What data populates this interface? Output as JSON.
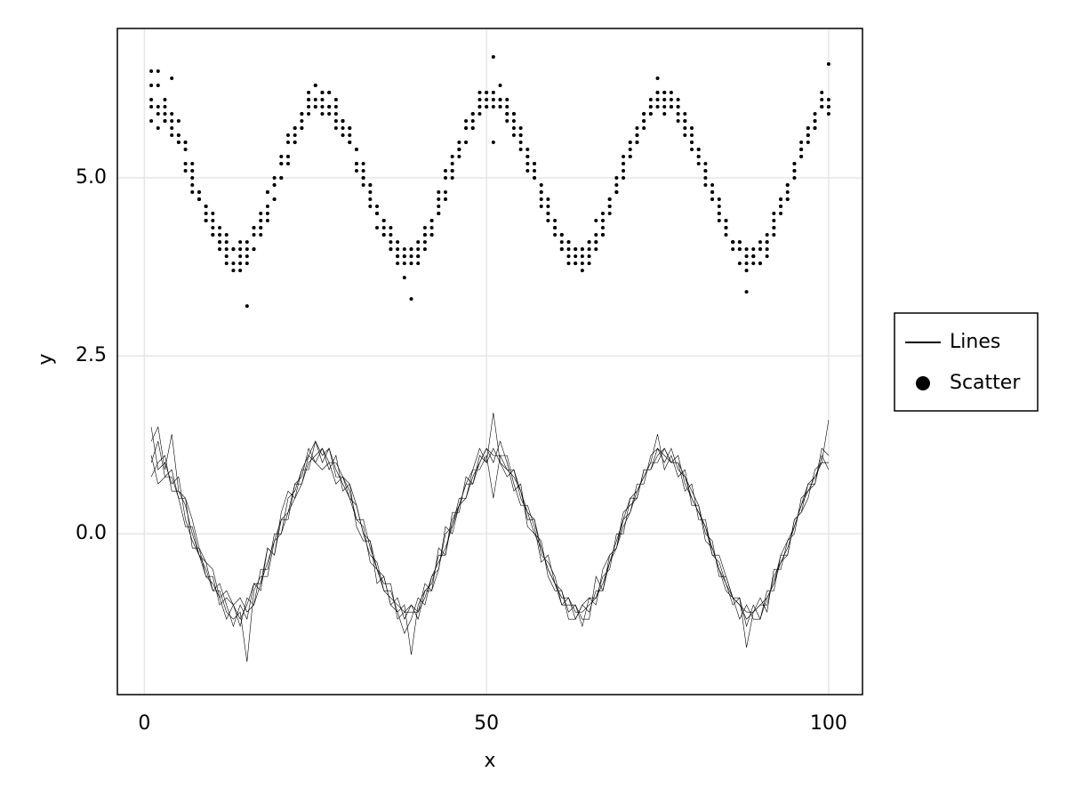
{
  "chart_data": {
    "type": "line",
    "x": [
      1,
      2,
      3,
      4,
      5,
      6,
      7,
      8,
      9,
      10,
      11,
      12,
      13,
      14,
      15,
      16,
      17,
      18,
      19,
      20,
      21,
      22,
      23,
      24,
      25,
      26,
      27,
      28,
      29,
      30,
      31,
      32,
      33,
      34,
      35,
      36,
      37,
      38,
      39,
      40,
      41,
      42,
      43,
      44,
      45,
      46,
      47,
      48,
      49,
      50,
      51,
      52,
      53,
      54,
      55,
      56,
      57,
      58,
      59,
      60,
      61,
      62,
      63,
      64,
      65,
      66,
      67,
      68,
      69,
      70,
      71,
      72,
      73,
      74,
      75,
      76,
      77,
      78,
      79,
      80,
      81,
      82,
      83,
      84,
      85,
      86,
      87,
      88,
      89,
      90,
      91,
      92,
      93,
      94,
      95,
      96,
      97,
      98,
      99,
      100
    ],
    "xlabel": "x",
    "ylabel": "y",
    "xlim": [
      -3.95,
      104.95
    ],
    "xticks": [
      0,
      50,
      100
    ],
    "ylim": [
      -2.26,
      7.1
    ],
    "yticks": [
      {
        "value": 0,
        "label": "0.0"
      },
      {
        "value": 2.5,
        "label": "2.5"
      },
      {
        "value": 5,
        "label": "5.0"
      }
    ],
    "grid": true,
    "legend": "right",
    "series": [
      {
        "name": "Lines",
        "type": "line",
        "color": "#000000",
        "values": [
          [
            1.5,
            0.9,
            1.0,
            0.7,
            0.8,
            0.2,
            -0.1,
            -0.3,
            -0.4,
            -0.8,
            -0.7,
            -1.0,
            -1.3,
            -1.0,
            -1.2,
            -0.7,
            -0.8,
            -0.2,
            -0.3,
            0.2,
            0.3,
            0.7,
            0.7,
            1.1,
            1.0,
            1.2,
            0.9,
            1.1,
            0.6,
            0.7,
            0.4,
            0.0,
            -0.3,
            -0.4,
            -0.8,
            -0.8,
            -1.1,
            -1.4,
            -1.2,
            -0.9,
            -1.0,
            -0.6,
            -0.5,
            0.0,
            0.1,
            0.5,
            0.5,
            0.9,
            1.2,
            1.0,
            1.2,
            1.0,
            0.9,
            0.9,
            0.5,
            0.3,
            0.2,
            -0.3,
            -0.4,
            -0.6,
            -1.0,
            -0.9,
            -1.2,
            -1.0,
            -1.1,
            -0.8,
            -0.8,
            -0.3,
            -0.2,
            0.2,
            0.3,
            0.7,
            0.7,
            1.1,
            1.2,
            1.0,
            1.2,
            0.9,
            0.8,
            0.6,
            0.4,
            0.0,
            -0.1,
            -0.6,
            -0.6,
            -0.9,
            -1.0,
            -1.2,
            -1.1,
            -1.0,
            -1.0,
            -0.6,
            -0.4,
            -0.3,
            0.2,
            0.3,
            0.7,
            0.8,
            1.0,
            1.0
          ],
          [
            1.0,
            1.3,
            0.8,
            0.9,
            0.5,
            0.5,
            -0.2,
            -0.2,
            -0.6,
            -0.6,
            -1.0,
            -0.9,
            -1.0,
            -1.3,
            -0.9,
            -1.0,
            -0.5,
            -0.5,
            0.0,
            0.0,
            0.5,
            0.6,
            0.9,
            0.9,
            1.3,
            1.0,
            1.2,
            0.8,
            0.8,
            0.5,
            0.2,
            0.1,
            -0.4,
            -0.5,
            -0.6,
            -1.0,
            -0.9,
            -1.2,
            -1.0,
            -1.2,
            -0.8,
            -0.7,
            -0.3,
            -0.3,
            0.3,
            0.3,
            0.8,
            0.7,
            1.0,
            1.2,
            1.0,
            1.3,
            1.0,
            0.6,
            0.7,
            0.1,
            0.0,
            -0.1,
            -0.6,
            -0.8,
            -0.8,
            -1.1,
            -1.0,
            -1.3,
            -0.9,
            -0.9,
            -0.6,
            -0.5,
            0.0,
            0.0,
            0.5,
            0.5,
            0.9,
            0.9,
            1.1,
            1.2,
            1.0,
            1.1,
            0.7,
            0.5,
            0.3,
            0.1,
            -0.3,
            -0.4,
            -0.7,
            -1.0,
            -0.9,
            -1.3,
            -1.0,
            -1.2,
            -0.8,
            -0.8,
            -0.3,
            -0.1,
            0.0,
            0.5,
            0.6,
            0.7,
            1.1,
            0.9
          ],
          [
            0.8,
            1.0,
            1.1,
            0.6,
            0.6,
            0.4,
            0.0,
            -0.3,
            -0.5,
            -0.8,
            -0.8,
            -1.1,
            -1.2,
            -1.1,
            -1.8,
            -0.8,
            -0.6,
            -0.6,
            -0.1,
            0.2,
            0.2,
            0.7,
            0.8,
            1.2,
            1.0,
            0.9,
            1.0,
            0.7,
            0.8,
            0.7,
            0.1,
            -0.1,
            -0.1,
            -0.7,
            -0.6,
            -1.0,
            -1.1,
            -1.0,
            -1.7,
            -1.0,
            -0.8,
            -0.8,
            -0.2,
            -0.3,
            0.2,
            0.4,
            0.7,
            0.9,
            0.9,
            1.1,
            0.5,
            1.1,
            1.1,
            0.7,
            0.4,
            0.4,
            0.1,
            -0.4,
            -0.3,
            -0.7,
            -1.0,
            -1.0,
            -1.0,
            -1.2,
            -1.2,
            -0.6,
            -0.8,
            -0.4,
            -0.1,
            0.2,
            0.5,
            0.6,
            0.8,
            1.0,
            1.4,
            0.9,
            1.1,
            0.8,
            0.9,
            0.4,
            0.4,
            -0.1,
            -0.2,
            -0.5,
            -0.8,
            -0.9,
            -0.9,
            -1.6,
            -1.1,
            -0.9,
            -1.1,
            -0.5,
            -0.5,
            -0.1,
            0.1,
            0.4,
            0.7,
            0.7,
            1.2,
            1.1
          ],
          [
            1.3,
            1.5,
            0.9,
            1.4,
            0.6,
            0.5,
            0.2,
            -0.2,
            -0.4,
            -0.5,
            -0.9,
            -0.8,
            -1.0,
            -0.9,
            -1.1,
            -1.0,
            -0.7,
            -0.2,
            -0.3,
            0.3,
            0.6,
            0.5,
            0.9,
            1.1,
            1.3,
            1.1,
            1.2,
            0.9,
            0.7,
            0.5,
            0.4,
            0.0,
            -0.1,
            -0.5,
            -0.7,
            -0.7,
            -1.2,
            -1.1,
            -1.0,
            -1.1,
            -0.7,
            -0.8,
            -0.5,
            0.1,
            0.0,
            0.4,
            0.7,
            0.7,
            1.1,
            1.0,
            1.7,
            1.0,
            0.8,
            0.9,
            0.6,
            0.2,
            0.2,
            -0.2,
            -0.5,
            -0.7,
            -0.8,
            -1.2,
            -1.2,
            -1.0,
            -0.9,
            -1.0,
            -0.5,
            -0.3,
            -0.2,
            0.3,
            0.4,
            0.5,
            0.9,
            0.9,
            1.2,
            1.1,
            1.0,
            1.0,
            0.6,
            0.7,
            0.2,
            0.2,
            -0.3,
            -0.3,
            -0.6,
            -0.9,
            -1.2,
            -1.0,
            -1.2,
            -1.2,
            -0.9,
            -0.7,
            -0.3,
            -0.3,
            0.2,
            0.3,
            0.5,
            0.9,
            1.0,
            1.6
          ],
          [
            1.1,
            0.7,
            0.8,
            0.8,
            0.5,
            0.1,
            0.1,
            -0.3,
            -0.6,
            -0.7,
            -0.9,
            -1.2,
            -1.0,
            -1.2,
            -1.0,
            -0.7,
            -0.7,
            -0.4,
            -0.1,
            0.0,
            0.3,
            0.5,
            0.7,
            1.0,
            1.1,
            1.2,
            1.0,
            1.0,
            0.8,
            0.6,
            0.2,
            0.2,
            -0.2,
            -0.5,
            -0.8,
            -0.9,
            -1.0,
            -1.1,
            -1.1,
            -1.1,
            -0.9,
            -0.6,
            -0.4,
            -0.2,
            0.1,
            0.4,
            0.5,
            0.8,
            1.0,
            1.2,
            1.1,
            1.1,
            0.9,
            0.8,
            0.6,
            0.3,
            0.0,
            -0.2,
            -0.5,
            -0.7,
            -0.9,
            -0.9,
            -1.1,
            -1.1,
            -1.0,
            -0.9,
            -0.7,
            -0.4,
            -0.2,
            0.1,
            0.3,
            0.6,
            0.8,
            1.0,
            1.0,
            1.2,
            1.0,
            1.0,
            0.8,
            0.5,
            0.3,
            0.1,
            -0.2,
            -0.5,
            -0.7,
            -0.9,
            -1.0,
            -1.1,
            -1.1,
            -1.0,
            -0.9,
            -0.7,
            -0.4,
            -0.2,
            0.1,
            0.4,
            0.6,
            0.8,
            1.0,
            1.0
          ]
        ]
      },
      {
        "name": "Scatter",
        "type": "scatter",
        "color": "#000000",
        "values": [
          [
            6.0,
            6.3,
            5.8,
            5.9,
            5.5,
            5.5,
            4.8,
            4.8,
            4.4,
            4.4,
            4.0,
            4.1,
            4.0,
            3.7,
            4.1,
            4.0,
            4.5,
            4.5,
            5.0,
            5.0,
            5.5,
            5.6,
            5.9,
            5.9,
            6.3,
            6.0,
            6.2,
            5.8,
            5.8,
            5.5,
            5.2,
            5.1,
            4.6,
            4.5,
            4.4,
            4.0,
            4.1,
            3.8,
            4.0,
            3.8,
            4.2,
            4.3,
            4.7,
            4.7,
            5.3,
            5.3,
            5.8,
            5.7,
            6.0,
            6.2,
            6.0,
            6.3,
            6.0,
            5.6,
            5.7,
            5.1,
            5.0,
            4.9,
            4.4,
            4.2,
            4.2,
            3.9,
            4.0,
            3.7,
            4.1,
            4.1,
            4.4,
            4.5,
            5.0,
            5.0,
            5.5,
            5.5,
            5.9,
            5.9,
            6.1,
            6.2,
            6.0,
            6.1,
            5.7,
            5.5,
            5.3,
            5.1,
            4.7,
            4.6,
            4.3,
            4.0,
            4.1,
            3.7,
            4.0,
            3.8,
            4.2,
            4.2,
            4.7,
            4.9,
            5.0,
            5.5,
            5.6,
            5.7,
            6.1,
            5.9
          ],
          [
            6.3,
            6.5,
            5.9,
            6.4,
            5.6,
            5.5,
            5.2,
            4.8,
            4.6,
            4.5,
            4.1,
            4.2,
            4.0,
            4.1,
            3.9,
            4.0,
            4.3,
            4.8,
            4.7,
            5.3,
            5.6,
            5.5,
            5.9,
            6.1,
            6.3,
            6.1,
            6.2,
            5.9,
            5.7,
            5.5,
            5.4,
            5.0,
            4.9,
            4.5,
            4.3,
            4.3,
            3.8,
            3.9,
            4.0,
            3.9,
            4.3,
            4.2,
            4.5,
            5.1,
            5.0,
            5.4,
            5.7,
            5.7,
            6.1,
            6.0,
            6.7,
            6.0,
            5.8,
            5.9,
            5.6,
            5.2,
            5.2,
            4.8,
            4.5,
            4.3,
            4.2,
            3.8,
            3.8,
            4.0,
            4.1,
            4.0,
            4.5,
            4.7,
            4.8,
            5.3,
            5.4,
            5.5,
            5.9,
            5.9,
            6.2,
            6.1,
            6.0,
            6.0,
            5.6,
            5.7,
            5.2,
            5.2,
            4.7,
            4.7,
            4.4,
            4.1,
            3.8,
            4.0,
            3.8,
            3.8,
            4.1,
            4.3,
            4.7,
            4.7,
            5.2,
            5.3,
            5.5,
            5.9,
            6.0,
            6.6
          ],
          [
            6.5,
            5.9,
            6.0,
            5.7,
            5.8,
            5.2,
            4.9,
            4.7,
            4.6,
            4.2,
            4.3,
            4.0,
            3.7,
            4.0,
            3.8,
            4.3,
            4.2,
            4.8,
            4.7,
            5.2,
            5.3,
            5.7,
            5.7,
            6.1,
            6.0,
            6.2,
            5.9,
            6.1,
            5.6,
            5.7,
            5.4,
            5.0,
            4.7,
            4.6,
            4.2,
            4.2,
            3.9,
            3.6,
            3.8,
            4.1,
            4.0,
            4.4,
            4.5,
            5.0,
            5.1,
            5.5,
            5.5,
            5.9,
            6.2,
            6.0,
            6.2,
            6.0,
            5.9,
            5.9,
            5.5,
            5.3,
            5.2,
            4.7,
            4.6,
            4.4,
            4.0,
            4.1,
            3.8,
            4.0,
            3.9,
            4.2,
            4.2,
            4.7,
            4.8,
            5.2,
            5.3,
            5.7,
            5.7,
            6.1,
            6.2,
            6.0,
            6.2,
            5.9,
            5.8,
            5.6,
            5.4,
            5.0,
            4.9,
            4.4,
            4.4,
            4.1,
            4.0,
            3.8,
            3.9,
            4.0,
            4.0,
            4.4,
            4.6,
            4.7,
            5.2,
            5.3,
            5.7,
            5.8,
            6.0,
            6.0
          ],
          [
            6.1,
            5.7,
            5.8,
            5.8,
            5.5,
            5.1,
            5.1,
            4.7,
            4.4,
            4.3,
            4.1,
            3.8,
            4.0,
            3.8,
            4.0,
            4.3,
            4.3,
            4.6,
            4.9,
            5.0,
            5.3,
            5.5,
            5.7,
            6.0,
            6.1,
            6.2,
            6.0,
            6.0,
            5.8,
            5.6,
            5.2,
            5.2,
            4.8,
            4.5,
            4.2,
            4.1,
            4.0,
            3.9,
            3.9,
            3.9,
            4.1,
            4.4,
            4.6,
            4.8,
            5.1,
            5.4,
            5.5,
            5.8,
            6.0,
            6.2,
            6.1,
            6.1,
            5.9,
            5.8,
            5.6,
            5.3,
            5.0,
            4.8,
            4.5,
            4.3,
            4.1,
            4.1,
            3.9,
            3.9,
            4.0,
            4.1,
            4.3,
            4.6,
            4.8,
            5.1,
            5.3,
            5.6,
            5.8,
            6.0,
            6.0,
            6.2,
            6.0,
            6.0,
            5.8,
            5.5,
            5.3,
            5.1,
            4.8,
            4.5,
            4.3,
            4.1,
            4.0,
            3.9,
            3.9,
            4.0,
            4.1,
            4.3,
            4.6,
            4.8,
            5.1,
            5.4,
            5.6,
            5.8,
            6.0,
            6.0
          ],
          [
            5.8,
            6.0,
            6.1,
            5.6,
            5.6,
            5.4,
            5.0,
            4.7,
            4.5,
            4.2,
            4.2,
            3.9,
            3.8,
            3.9,
            3.2,
            4.2,
            4.4,
            4.4,
            4.9,
            5.2,
            5.2,
            5.7,
            5.8,
            6.2,
            6.0,
            5.9,
            6.0,
            5.7,
            5.8,
            5.7,
            5.1,
            4.9,
            4.9,
            4.3,
            4.4,
            4.0,
            3.9,
            4.0,
            3.3,
            4.0,
            4.2,
            4.2,
            4.8,
            4.7,
            5.2,
            5.4,
            5.7,
            5.9,
            5.9,
            6.1,
            5.5,
            6.1,
            6.1,
            5.7,
            5.4,
            5.4,
            5.1,
            4.6,
            4.7,
            4.3,
            4.0,
            4.0,
            4.0,
            3.8,
            3.8,
            4.4,
            4.2,
            4.6,
            4.9,
            5.2,
            5.5,
            5.6,
            5.8,
            6.0,
            6.4,
            5.9,
            6.1,
            5.8,
            5.9,
            5.4,
            5.4,
            4.9,
            4.8,
            4.5,
            4.2,
            4.1,
            4.1,
            3.4,
            3.9,
            4.1,
            3.9,
            4.5,
            4.5,
            4.9,
            5.1,
            5.4,
            5.7,
            5.7,
            6.2,
            6.1
          ]
        ]
      }
    ]
  }
}
